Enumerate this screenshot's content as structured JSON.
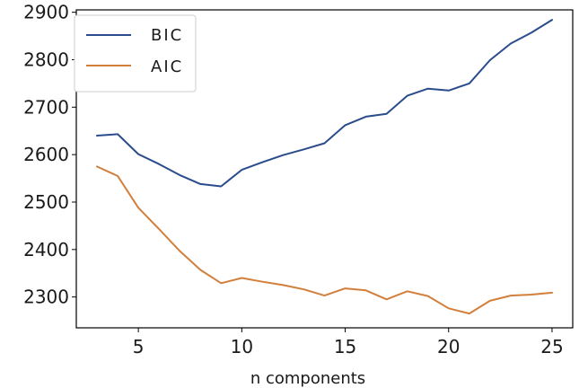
{
  "chart_data": {
    "type": "line",
    "title": "",
    "xlabel": "n  components",
    "ylabel": "",
    "xlim": [
      2.0,
      26.0
    ],
    "ylim": [
      2235,
      2905
    ],
    "xticks": [
      5,
      10,
      15,
      20,
      25
    ],
    "yticks": [
      2300,
      2400,
      2500,
      2600,
      2700,
      2800,
      2900
    ],
    "grid": false,
    "legend_position": "top-left",
    "x": [
      3,
      4,
      5,
      6,
      7,
      8,
      9,
      10,
      11,
      12,
      13,
      14,
      15,
      16,
      17,
      18,
      19,
      20,
      21,
      22,
      23,
      24,
      25
    ],
    "series": [
      {
        "name": "BIC",
        "color": "#2b4c8c",
        "values": [
          2640,
          2643,
          2601,
          2580,
          2557,
          2538,
          2533,
          2568,
          2584,
          2599,
          2611,
          2624,
          2662,
          2680,
          2686,
          2724,
          2739,
          2735,
          2750,
          2799,
          2834,
          2857,
          2884
        ]
      },
      {
        "name": "AIC",
        "color": "#d27f3c",
        "values": [
          2575,
          2555,
          2488,
          2443,
          2397,
          2357,
          2329,
          2340,
          2332,
          2325,
          2316,
          2303,
          2318,
          2314,
          2295,
          2312,
          2302,
          2276,
          2265,
          2292,
          2303,
          2305,
          2309
        ]
      }
    ]
  }
}
